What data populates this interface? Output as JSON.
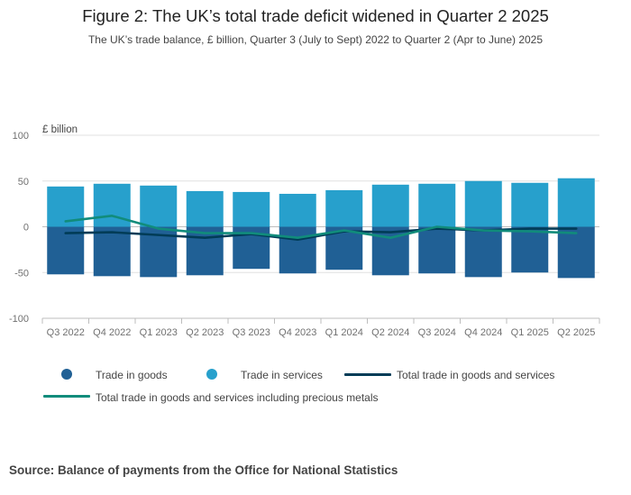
{
  "title": "Figure 2: The UK’s total trade deficit widened in Quarter 2 2025",
  "subtitle": "The UK’s trade balance, £ billion, Quarter 3 (July to Sept) 2022 to Quarter 2 (Apr to June) 2025",
  "source": "Source: Balance of payments from the Office for National Statistics",
  "colors": {
    "goods": "#206095",
    "services": "#27a0cc",
    "total": "#003c57",
    "total_metals": "#118c7b",
    "grid": "#e0e0e0",
    "axis_text": "#707070"
  },
  "legend": {
    "goods": "Trade in goods",
    "services": "Trade in services",
    "total": "Total trade in goods and services",
    "total_metals": "Total trade in goods and services including precious metals"
  },
  "chart_data": {
    "type": "bar",
    "stacked": true,
    "ylabel": "£ billion",
    "ylim": [
      -100,
      100
    ],
    "yticks": [
      100,
      50,
      0,
      -50,
      -100
    ],
    "categories": [
      "Q3 2022",
      "Q4 2022",
      "Q1 2023",
      "Q2 2023",
      "Q3 2023",
      "Q4 2023",
      "Q1 2024",
      "Q2 2024",
      "Q3 2024",
      "Q4 2024",
      "Q1 2025",
      "Q2 2025"
    ],
    "bar_series": [
      {
        "name": "Trade in goods",
        "values": [
          -52,
          -54,
          -55,
          -53,
          -46,
          -51,
          -47,
          -53,
          -51,
          -55,
          -50,
          -56
        ]
      },
      {
        "name": "Trade in services",
        "values": [
          44,
          47,
          45,
          39,
          38,
          36,
          40,
          46,
          47,
          50,
          48,
          53
        ]
      }
    ],
    "line_series": [
      {
        "name": "Total trade in goods and services",
        "values": [
          -7,
          -6,
          -9,
          -12,
          -8,
          -14,
          -5,
          -6,
          -2,
          -4,
          -2,
          -2
        ]
      },
      {
        "name": "Total trade in goods and services including precious metals",
        "values": [
          6,
          12,
          -2,
          -7,
          -7,
          -12,
          -4,
          -12,
          0,
          -4,
          -5,
          -7
        ]
      }
    ],
    "grid": true,
    "legend_position": "bottom"
  }
}
